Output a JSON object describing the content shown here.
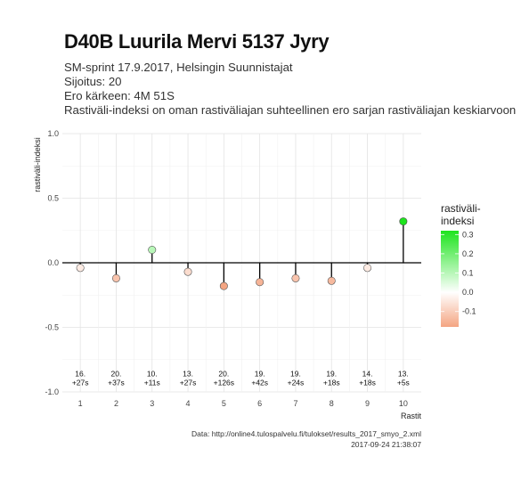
{
  "header": {
    "title": "D40B Luurila Mervi 5137 Jyry",
    "subtitle_lines": [
      "SM-sprint 17.9.2017, Helsingin Suunnistajat",
      "Sijoitus: 20",
      "Ero kärkeen: 4M 51S",
      "Rastiväli-indeksi on oman rastiväliajan suhteellinen ero sarjan rastiväliajan keskiarvoon"
    ]
  },
  "chart_data": {
    "type": "lollipop",
    "xlabel": "Rastit",
    "ylabel": "rastiväli-indeksi",
    "ylim": [
      -1.0,
      1.0
    ],
    "yticks": [
      "1.0",
      "0.5",
      "0.0",
      "-0.5",
      "-1.0"
    ],
    "ytick_values": [
      1.0,
      0.5,
      0.0,
      -0.5,
      -1.0
    ],
    "x": [
      1,
      2,
      3,
      4,
      5,
      6,
      7,
      8,
      9,
      10
    ],
    "xtick_labels": [
      "1",
      "2",
      "3",
      "4",
      "5",
      "6",
      "7",
      "8",
      "9",
      "10"
    ],
    "values": [
      -0.04,
      -0.12,
      0.1,
      -0.07,
      -0.18,
      -0.15,
      -0.12,
      -0.14,
      -0.04,
      0.32
    ],
    "annotations": [
      {
        "rank": "16.",
        "diff": "+27s"
      },
      {
        "rank": "20.",
        "diff": "+37s"
      },
      {
        "rank": "10.",
        "diff": "+11s"
      },
      {
        "rank": "13.",
        "diff": "+27s"
      },
      {
        "rank": "20.",
        "diff": "+126s"
      },
      {
        "rank": "19.",
        "diff": "+42s"
      },
      {
        "rank": "19.",
        "diff": "+24s"
      },
      {
        "rank": "19.",
        "diff": "+18s"
      },
      {
        "rank": "14.",
        "diff": "+18s"
      },
      {
        "rank": "13.",
        "diff": "+5s"
      }
    ],
    "legend": {
      "title_lines": [
        "rastiväli-",
        "indeksi"
      ],
      "labels": [
        "0.3",
        "0.2",
        "0.1",
        "0.0",
        "-0.1"
      ],
      "label_values": [
        0.3,
        0.2,
        0.1,
        0.0,
        -0.1
      ],
      "range": [
        -0.18,
        0.32
      ],
      "placement": "right",
      "colors": {
        "negative": "#f4a582",
        "zero": "#ffffff",
        "positive": "#1de41d"
      }
    },
    "grid": true,
    "caption_lines": [
      "Data: http://online4.tulospalvelu.fi/tulokset/results_2017_smyo_2.xml",
      "2017-09-24 21:38:07"
    ]
  }
}
